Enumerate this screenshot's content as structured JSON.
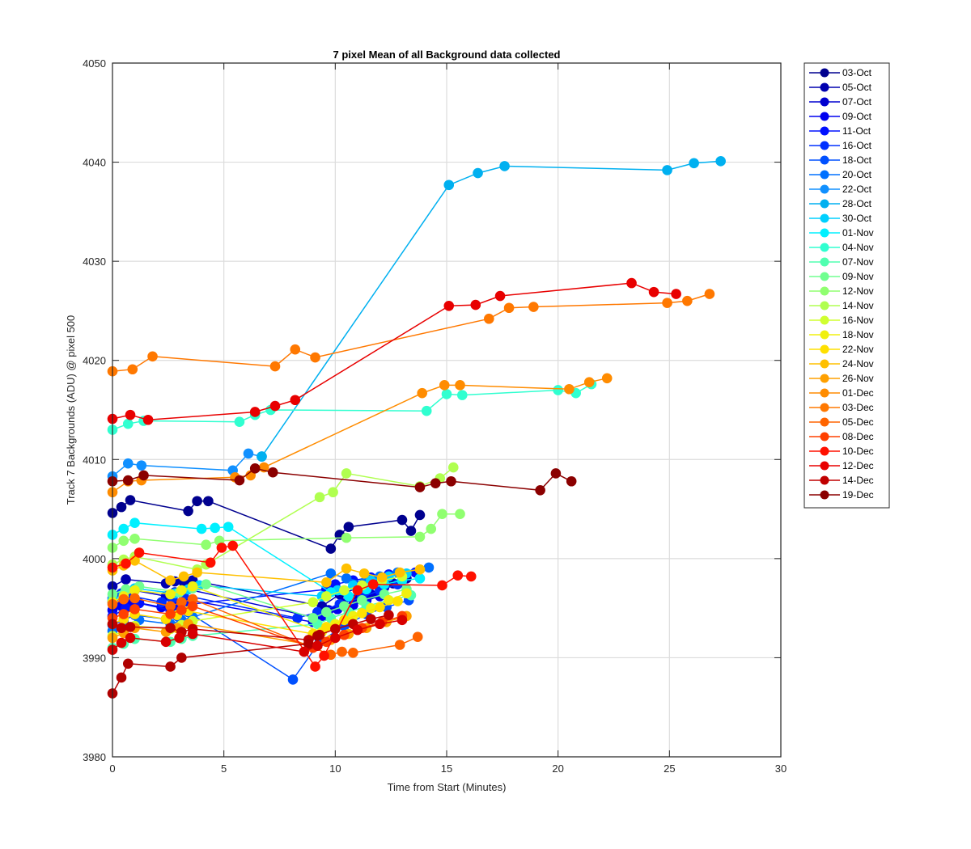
{
  "chart_data": {
    "type": "line",
    "title": "7 pixel Mean of all Background data collected",
    "xlabel": "Time from Start (Minutes)",
    "ylabel": "Track 7 Backgrounds (ADU) @ pixel 500",
    "xlim": [
      0,
      30
    ],
    "ylim": [
      3980,
      4050
    ],
    "xticks": [
      "0",
      "5",
      "10",
      "15",
      "20",
      "25",
      "30"
    ],
    "yticks": [
      "3980",
      "3990",
      "4000",
      "4010",
      "4020",
      "4030",
      "4040",
      "4050"
    ],
    "grid": true,
    "legend_position": "outside-right-top",
    "series": [
      {
        "name": "03-Oct",
        "color": "#00008f",
        "x": [
          0.0,
          0.4,
          0.8,
          3.4,
          3.8,
          4.3,
          9.8,
          10.2,
          10.6,
          13.0,
          13.4,
          13.8
        ],
        "y": [
          4004.6,
          4005.2,
          4005.9,
          4004.8,
          4005.8,
          4005.8,
          4001.0,
          4002.4,
          4003.2,
          4003.9,
          4002.8,
          4004.4
        ]
      },
      {
        "name": "05-Oct",
        "color": "#0000af",
        "x": [
          0.0,
          0.6,
          2.4,
          2.8,
          3.2,
          3.6,
          9.4,
          10.2,
          11.0,
          12.0,
          12.6,
          13.2
        ],
        "y": [
          3997.2,
          3997.9,
          3997.5,
          3997.7,
          3997.6,
          3997.8,
          3995.2,
          3996.4,
          3997.0,
          3997.8,
          3997.5,
          3998.0
        ]
      },
      {
        "name": "07-Oct",
        "color": "#0000cf",
        "x": [
          0.0,
          0.5,
          1.0,
          2.4,
          2.8,
          3.4,
          9.2,
          9.7,
          10.3,
          11.0,
          11.6,
          12.2
        ],
        "y": [
          3995.6,
          3996.1,
          3996.8,
          3996.2,
          3996.6,
          3996.9,
          3994.0,
          3994.8,
          3995.5,
          3996.0,
          3996.4,
          3997.1
        ]
      },
      {
        "name": "09-Oct",
        "color": "#0000ef",
        "x": [
          0.0,
          0.4,
          0.8,
          2.2,
          2.7,
          3.2,
          9.0,
          9.5,
          10.1,
          10.8,
          11.4,
          12.0
        ],
        "y": [
          3994.8,
          3995.2,
          3995.7,
          3995.1,
          3995.5,
          3995.9,
          3993.6,
          3994.2,
          3994.9,
          3995.3,
          3995.8,
          3996.2
        ]
      },
      {
        "name": "11-Oct",
        "color": "#0010ff",
        "x": [
          0.0,
          0.6,
          1.2,
          2.6,
          3.0,
          3.5,
          9.6,
          10.0,
          10.8,
          11.6,
          12.4,
          13.6
        ],
        "y": [
          3994.2,
          3995.0,
          3995.5,
          3994.8,
          3995.1,
          3995.4,
          3996.9,
          3997.4,
          3997.8,
          3998.1,
          3998.4,
          3998.6
        ]
      },
      {
        "name": "16-Oct",
        "color": "#0030ff",
        "x": [
          0.0,
          0.4,
          0.9,
          2.2,
          2.7,
          3.2,
          8.3,
          9.2,
          10.2,
          11.2,
          12.0,
          12.8
        ],
        "y": [
          3996.0,
          3996.5,
          3996.2,
          3995.6,
          3996.0,
          3996.3,
          3994.0,
          3994.6,
          3995.4,
          3996.1,
          3996.8,
          3997.4
        ]
      },
      {
        "name": "18-Oct",
        "color": "#0050ff",
        "x": [
          0.0,
          0.5,
          1.0,
          2.4,
          2.9,
          3.4,
          8.1,
          9.3,
          10.4,
          11.4,
          12.3,
          13.3
        ],
        "y": [
          3993.3,
          3993.8,
          3994.3,
          3993.9,
          3994.2,
          3994.6,
          3987.8,
          3991.6,
          3993.2,
          3994.4,
          3995.1,
          3995.8
        ]
      },
      {
        "name": "20-Oct",
        "color": "#0070ff",
        "x": [
          0.0,
          0.6,
          1.2,
          2.6,
          3.1,
          3.6,
          9.8,
          10.5,
          11.3,
          12.0,
          12.8,
          14.2
        ],
        "y": [
          3992.7,
          3993.2,
          3993.8,
          3993.4,
          3993.8,
          3994.1,
          3998.5,
          3998.0,
          3997.6,
          3998.2,
          3998.6,
          3999.1
        ]
      },
      {
        "name": "22-Oct",
        "color": "#1090ff",
        "x": [
          0.0,
          0.7,
          1.3,
          5.4,
          6.1,
          6.7
        ],
        "y": [
          4008.3,
          4009.6,
          4009.4,
          4008.9,
          4010.6,
          4010.3
        ]
      },
      {
        "name": "28-Oct",
        "color": "#00b0f0",
        "x": [
          6.7,
          15.1,
          16.4,
          17.6,
          24.9,
          26.1,
          27.3
        ],
        "y": [
          4010.3,
          4037.7,
          4038.9,
          4039.6,
          4039.2,
          4039.9,
          4040.1
        ]
      },
      {
        "name": "30-Oct",
        "color": "#00d0ff",
        "x": [
          0.0,
          0.5,
          1.0,
          2.8,
          3.4,
          3.9,
          9.4,
          10.1,
          10.8,
          11.6,
          12.4,
          13.2
        ],
        "y": [
          3995.8,
          3996.4,
          3997.0,
          3996.5,
          3996.9,
          3997.3,
          3996.2,
          3996.8,
          3997.3,
          3997.8,
          3998.2,
          3998.5
        ]
      },
      {
        "name": "01-Nov",
        "color": "#00f0ff",
        "x": [
          0.0,
          0.5,
          1.0,
          4.0,
          4.6,
          5.2,
          9.8,
          10.6,
          11.4,
          12.2,
          13.0,
          13.8
        ],
        "y": [
          4002.4,
          4003.0,
          4003.6,
          4003.0,
          4003.1,
          4003.2,
          3996.6,
          3996.2,
          3996.9,
          3997.4,
          3997.8,
          3998.0
        ]
      },
      {
        "name": "04-Nov",
        "color": "#30ffd0",
        "x": [
          0.0,
          0.7,
          1.4,
          5.7,
          6.4,
          7.1,
          14.1,
          15.0,
          15.7,
          20.0,
          20.8,
          21.5
        ],
        "y": [
          4013.0,
          4013.6,
          4013.9,
          4013.8,
          4014.5,
          4015.0,
          4014.9,
          4016.6,
          4016.5,
          4017.0,
          4016.7,
          4017.6
        ]
      },
      {
        "name": "07-Nov",
        "color": "#50ffb0",
        "x": [
          0.0,
          0.5,
          1.0,
          2.6,
          3.1,
          3.6,
          9.2,
          9.8,
          10.6,
          11.4,
          12.4,
          13.4
        ],
        "y": [
          3991.0,
          3991.4,
          3991.9,
          3991.6,
          3991.9,
          3992.2,
          3993.4,
          3994.0,
          3994.6,
          3995.2,
          3995.8,
          3996.3
        ]
      },
      {
        "name": "09-Nov",
        "color": "#70ff90",
        "x": [
          0.0,
          0.6,
          1.2,
          3.0,
          3.6,
          4.2,
          9.0,
          9.6,
          10.4,
          11.2,
          12.2,
          13.2
        ],
        "y": [
          3996.4,
          3996.9,
          3997.2,
          3996.6,
          3997.0,
          3997.4,
          3994.0,
          3994.6,
          3995.2,
          3995.8,
          3996.4,
          3996.9
        ]
      },
      {
        "name": "12-Nov",
        "color": "#90ff70",
        "x": [
          0.0,
          0.5,
          1.0,
          4.2,
          4.8,
          10.5,
          13.8,
          14.3,
          14.8,
          15.6
        ],
        "y": [
          4001.1,
          4001.8,
          4002.0,
          4001.4,
          4001.8,
          4002.1,
          4002.2,
          4003.0,
          4004.5,
          4004.5
        ]
      },
      {
        "name": "14-Nov",
        "color": "#b0ff50",
        "x": [
          0.0,
          0.5,
          1.0,
          3.8,
          4.2,
          9.3,
          9.9,
          10.5,
          13.8,
          14.7,
          15.3
        ],
        "y": [
          3999.4,
          3999.9,
          4000.2,
          3998.9,
          3999.4,
          4006.2,
          4006.7,
          4008.6,
          4007.3,
          4008.1,
          4009.2
        ]
      },
      {
        "name": "16-Nov",
        "color": "#d0ff30",
        "x": [
          0.0,
          0.5,
          1.0,
          2.6,
          3.1,
          3.6,
          9.0,
          9.6,
          10.4,
          11.2,
          12.1,
          13.0
        ],
        "y": [
          3992.2,
          3992.7,
          3993.2,
          3992.9,
          3993.3,
          3993.7,
          3995.6,
          3996.2,
          3996.8,
          3997.3,
          3997.8,
          3998.2
        ]
      },
      {
        "name": "18-Nov",
        "color": "#f0f010",
        "x": [
          0.0,
          0.5,
          1.0,
          2.6,
          3.1,
          3.6,
          9.4,
          10.0,
          10.8,
          11.6,
          12.4,
          13.2
        ],
        "y": [
          3995.6,
          3996.2,
          3996.8,
          3996.4,
          3996.8,
          3997.2,
          3992.6,
          3993.4,
          3994.2,
          3995.0,
          3995.8,
          3996.5
        ]
      },
      {
        "name": "22-Nov",
        "color": "#ffe000",
        "x": [
          0.0,
          0.5,
          1.0,
          2.4,
          2.9,
          3.4,
          9.0,
          9.6,
          10.4,
          11.2,
          12.0,
          12.8
        ],
        "y": [
          3993.4,
          3993.9,
          3994.4,
          3993.9,
          3994.3,
          3994.7,
          3992.4,
          3993.1,
          3993.8,
          3994.5,
          3995.1,
          3995.7
        ]
      },
      {
        "name": "24-Nov",
        "color": "#ffc000",
        "x": [
          0.0,
          0.5,
          1.0,
          2.6,
          3.2,
          3.8,
          9.6,
          10.5,
          11.3,
          12.1,
          12.9,
          13.8
        ],
        "y": [
          3998.8,
          3999.3,
          3999.8,
          3997.8,
          3998.2,
          3998.6,
          3997.6,
          3999.0,
          3998.5,
          3998.1,
          3998.6,
          3998.9
        ]
      },
      {
        "name": "26-Nov",
        "color": "#ffa000",
        "x": [
          0.0,
          0.5,
          1.0,
          2.4,
          2.9,
          3.4,
          9.2,
          9.8,
          10.6,
          11.4,
          12.3,
          13.2
        ],
        "y": [
          3992.0,
          3992.5,
          3993.0,
          3992.6,
          3993.0,
          3993.4,
          3991.2,
          3991.8,
          3992.4,
          3993.0,
          3993.6,
          3994.2
        ]
      },
      {
        "name": "01-Dec",
        "color": "#ff8c00",
        "x": [
          0.0,
          0.7,
          1.3,
          5.5,
          6.2,
          6.8,
          13.9,
          14.9,
          15.6,
          20.5,
          21.4,
          22.2
        ],
        "y": [
          4006.7,
          4007.8,
          4007.9,
          4008.2,
          4008.4,
          4009.2,
          4016.7,
          4017.5,
          4017.5,
          4017.1,
          4017.8,
          4018.2
        ]
      },
      {
        "name": "03-Dec",
        "color": "#ff7800",
        "x": [
          0.0,
          0.9,
          1.8,
          7.3,
          8.2,
          9.1,
          16.9,
          17.8,
          18.9,
          24.9,
          25.8,
          26.8
        ],
        "y": [
          4018.9,
          4019.1,
          4020.4,
          4019.4,
          4021.1,
          4020.3,
          4024.2,
          4025.3,
          4025.4,
          4025.8,
          4026.0,
          4026.7
        ]
      },
      {
        "name": "05-Dec",
        "color": "#ff6400",
        "x": [
          0.0,
          0.5,
          1.0,
          2.6,
          3.1,
          3.6,
          9.8,
          10.3,
          10.8,
          12.9,
          13.7
        ],
        "y": [
          3995.4,
          3995.9,
          3996.0,
          3995.2,
          3995.6,
          3995.9,
          3990.3,
          3990.6,
          3990.5,
          3991.3,
          3992.1
        ]
      },
      {
        "name": "08-Dec",
        "color": "#ff4000",
        "x": [
          0.0,
          0.5,
          1.0,
          2.6,
          3.1,
          3.6,
          9.0,
          9.6,
          10.4,
          11.2,
          12.1,
          13.0
        ],
        "y": [
          3994.0,
          3994.4,
          3994.9,
          3994.4,
          3994.8,
          3995.2,
          3991.0,
          3991.6,
          3992.3,
          3993.0,
          3993.6,
          3994.2
        ]
      },
      {
        "name": "10-Dec",
        "color": "#ff1000",
        "x": [
          0.0,
          0.6,
          1.2,
          4.4,
          4.9,
          5.4,
          9.1,
          9.5,
          11.0,
          11.7,
          14.8,
          15.5,
          16.1
        ],
        "y": [
          3999.1,
          3999.5,
          4000.6,
          3999.6,
          4001.1,
          4001.3,
          3989.1,
          3990.2,
          3996.8,
          3997.4,
          3997.3,
          3998.3,
          3998.2
        ]
      },
      {
        "name": "12-Dec",
        "color": "#e80000",
        "x": [
          0.0,
          0.8,
          1.6,
          6.4,
          7.3,
          8.2,
          15.1,
          16.3,
          17.4,
          23.3,
          24.3,
          25.3
        ],
        "y": [
          4014.1,
          4014.5,
          4014.0,
          4014.8,
          4015.4,
          4016.0,
          4025.5,
          4025.6,
          4026.5,
          4027.8,
          4026.9,
          4026.7
        ]
      },
      {
        "name": "14-Dec",
        "color": "#c00000",
        "x": [
          0.0,
          0.4,
          0.8,
          2.6,
          3.1,
          3.6,
          8.8,
          9.3,
          10.0,
          10.8,
          11.6,
          12.4
        ],
        "y": [
          3993.4,
          3993.0,
          3993.1,
          3993.0,
          3992.6,
          3992.9,
          3991.8,
          3992.3,
          3992.9,
          3993.4,
          3993.9,
          3994.3
        ]
      },
      {
        "name": "19-Dec",
        "color": "#8b0000",
        "x": [
          0.0,
          0.7,
          1.4,
          5.7,
          6.4,
          7.2,
          13.8,
          14.5,
          15.2,
          19.2,
          19.9,
          20.6
        ],
        "y": [
          4007.8,
          4007.9,
          4008.4,
          4007.9,
          4009.1,
          4008.7,
          4007.2,
          4007.6,
          4007.8,
          4006.9,
          4008.6,
          4007.8
        ]
      },
      {
        "name": "",
        "color": "#b00000",
        "x": [
          0.0,
          0.4,
          0.7,
          2.6,
          3.1,
          8.8,
          9.2
        ],
        "y": [
          3986.4,
          3988.0,
          3989.4,
          3989.1,
          3990.0,
          3991.4,
          3992.2
        ]
      },
      {
        "name": "",
        "color": "#d80000",
        "x": [
          0.0,
          0.4,
          0.8,
          2.4,
          3.0,
          3.6,
          8.6,
          9.2,
          10.0,
          11.0,
          12.0,
          13.0
        ],
        "y": [
          3990.8,
          3991.5,
          3992.0,
          3991.6,
          3992.0,
          3992.4,
          3990.6,
          3991.2,
          3992.0,
          3992.8,
          3993.4,
          3993.8
        ]
      }
    ]
  }
}
